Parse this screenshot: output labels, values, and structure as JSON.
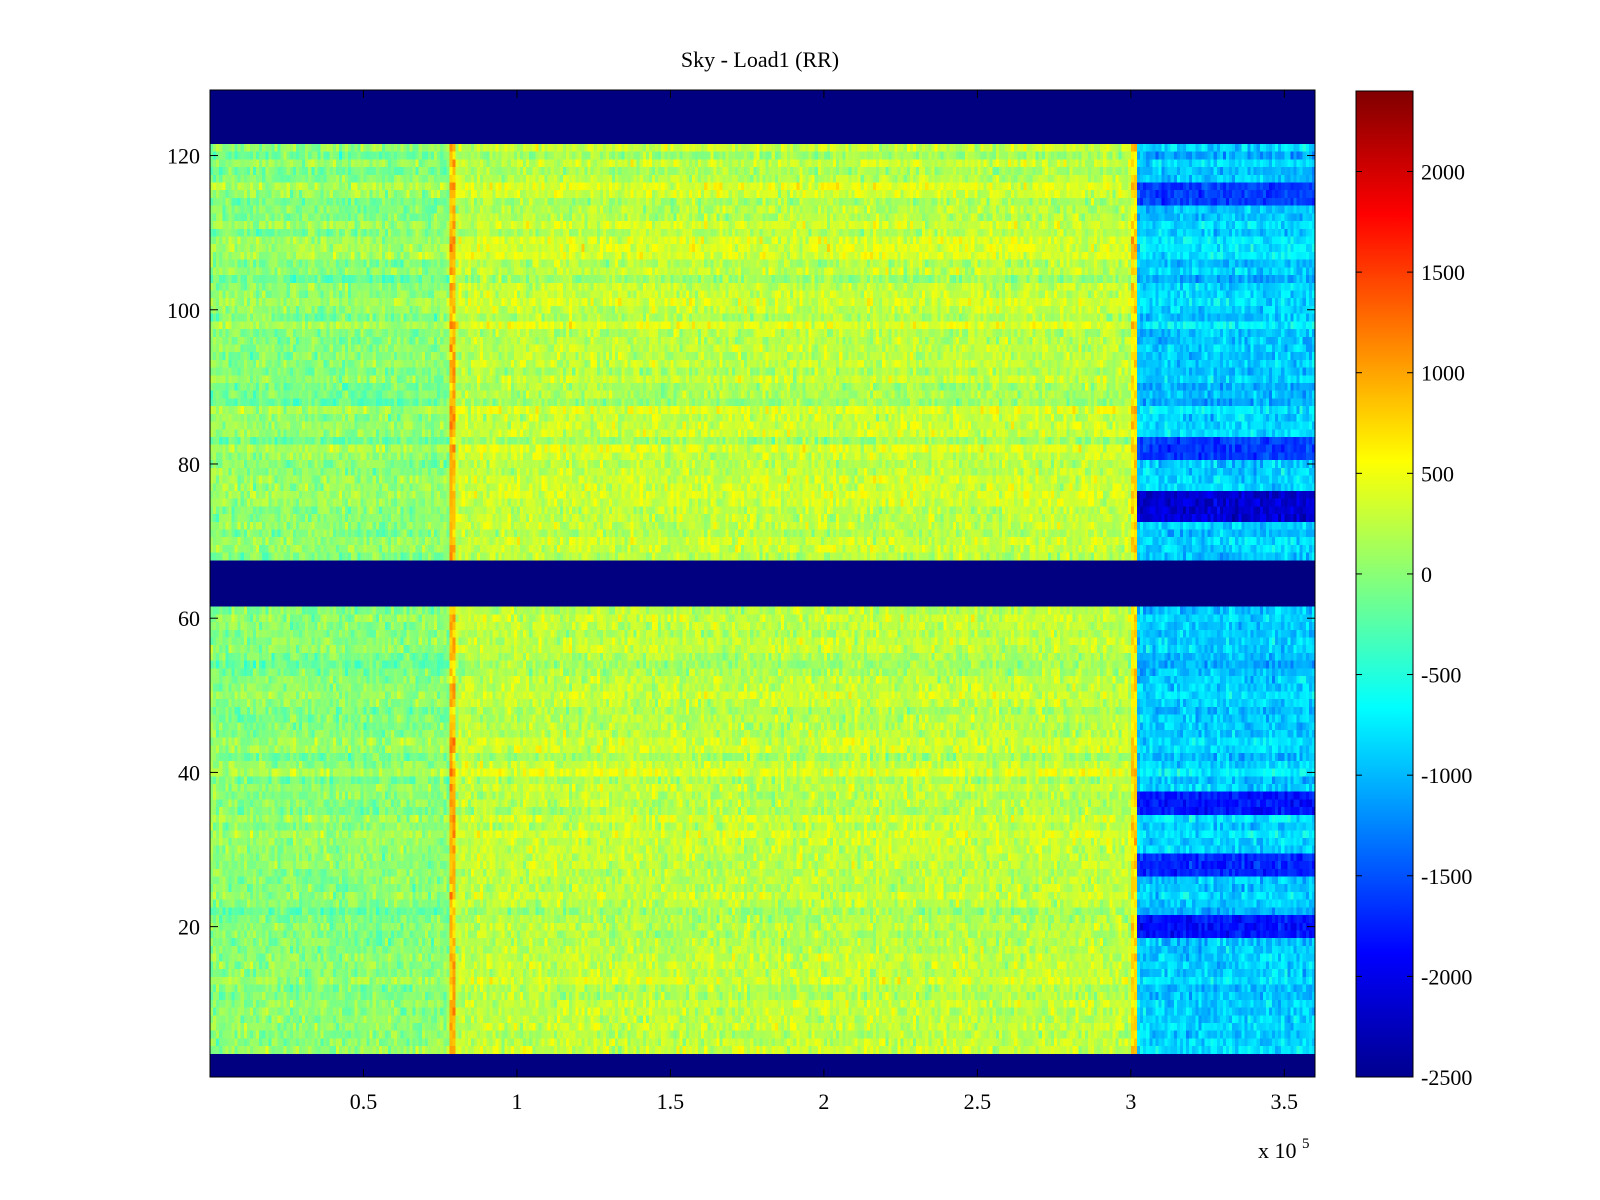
{
  "chart_data": {
    "type": "heatmap",
    "title": "Sky - Load1 (RR)",
    "xlabel": "",
    "ylabel": "",
    "x_multiplier": "x 10",
    "x_multiplier_exponent": "5",
    "xlim": [
      0,
      3.6
    ],
    "ylim": [
      0.5,
      128.5
    ],
    "x_ticks": [
      0.5,
      1,
      1.5,
      2,
      2.5,
      3,
      3.5
    ],
    "x_tick_labels": [
      "0.5",
      "1",
      "1.5",
      "2",
      "2.5",
      "3",
      "3.5"
    ],
    "y_ticks": [
      20,
      40,
      60,
      80,
      100,
      120
    ],
    "y_tick_labels": [
      "20",
      "40",
      "60",
      "80",
      "100",
      "120"
    ],
    "colormap": "jet",
    "clim": [
      -2500,
      2400
    ],
    "colorbar_ticks": [
      2000,
      1500,
      1000,
      500,
      0,
      -500,
      -1000,
      -1500,
      -2000,
      -2500
    ],
    "colorbar_tick_labels": [
      "2000",
      "1500",
      "1000",
      "500",
      "0",
      "-500",
      "-1000",
      "-1500",
      "-2000",
      "-2500"
    ],
    "masked_value": -2500,
    "masked_channel_ranges": [
      [
        1,
        3
      ],
      [
        62,
        67
      ],
      [
        122,
        128
      ]
    ],
    "regions": [
      {
        "x_range": [
          0,
          0.78
        ],
        "typical_value": 0
      },
      {
        "x_range": [
          0.78,
          0.8
        ],
        "typical_value": 900
      },
      {
        "x_range": [
          0.8,
          3.0
        ],
        "typical_value": 250
      },
      {
        "x_range": [
          3.0,
          3.02
        ],
        "typical_value": 700
      },
      {
        "x_range": [
          3.02,
          3.6
        ],
        "typical_value": -900
      }
    ],
    "dark_channel_bands_after_3": [
      {
        "y_range": [
          19,
          21
        ],
        "value": -1800
      },
      {
        "y_range": [
          27,
          29
        ],
        "value": -1700
      },
      {
        "y_range": [
          35,
          37
        ],
        "value": -1800
      },
      {
        "y_range": [
          73,
          76
        ],
        "value": -2100
      },
      {
        "y_range": [
          81,
          83
        ],
        "value": -1600
      },
      {
        "y_range": [
          114,
          116
        ],
        "value": -1600
      }
    ],
    "grid": false
  }
}
